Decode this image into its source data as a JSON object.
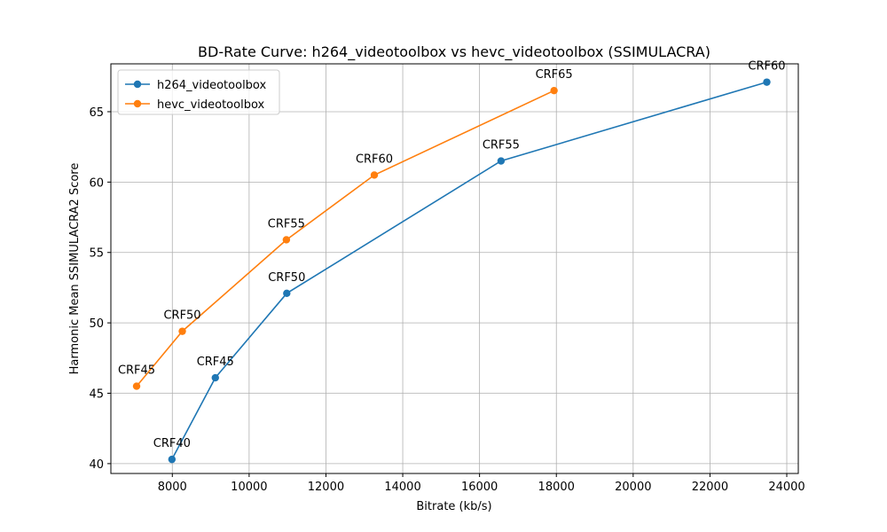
{
  "chart_data": {
    "type": "line",
    "title": "BD-Rate Curve: h264_videotoolbox vs hevc_videotoolbox (SSIMULACRA)",
    "xlabel": "Bitrate (kb/s)",
    "ylabel": "Harmonic Mean SSIMULACRA2 Score",
    "xlim": [
      6400,
      24300
    ],
    "ylim": [
      39.3,
      68.4
    ],
    "xticks": [
      8000,
      10000,
      12000,
      14000,
      16000,
      18000,
      20000,
      22000,
      24000
    ],
    "yticks": [
      40,
      45,
      50,
      55,
      60,
      65
    ],
    "grid": true,
    "legend_position": "top-left",
    "series": [
      {
        "name": "h264_videotoolbox",
        "color": "#1f77b4",
        "points": [
          {
            "x": 7990,
            "y": 40.3,
            "label": "CRF40"
          },
          {
            "x": 9120,
            "y": 46.1,
            "label": "CRF45"
          },
          {
            "x": 10980,
            "y": 52.1,
            "label": "CRF50"
          },
          {
            "x": 16560,
            "y": 61.5,
            "label": "CRF55"
          },
          {
            "x": 23480,
            "y": 67.1,
            "label": "CRF60"
          }
        ]
      },
      {
        "name": "hevc_videotoolbox",
        "color": "#ff7f0e",
        "points": [
          {
            "x": 7070,
            "y": 45.5,
            "label": "CRF45"
          },
          {
            "x": 8260,
            "y": 49.4,
            "label": "CRF50"
          },
          {
            "x": 10970,
            "y": 55.9,
            "label": "CRF55"
          },
          {
            "x": 13260,
            "y": 60.5,
            "label": "CRF60"
          },
          {
            "x": 17940,
            "y": 66.5,
            "label": "CRF65"
          }
        ]
      }
    ]
  }
}
